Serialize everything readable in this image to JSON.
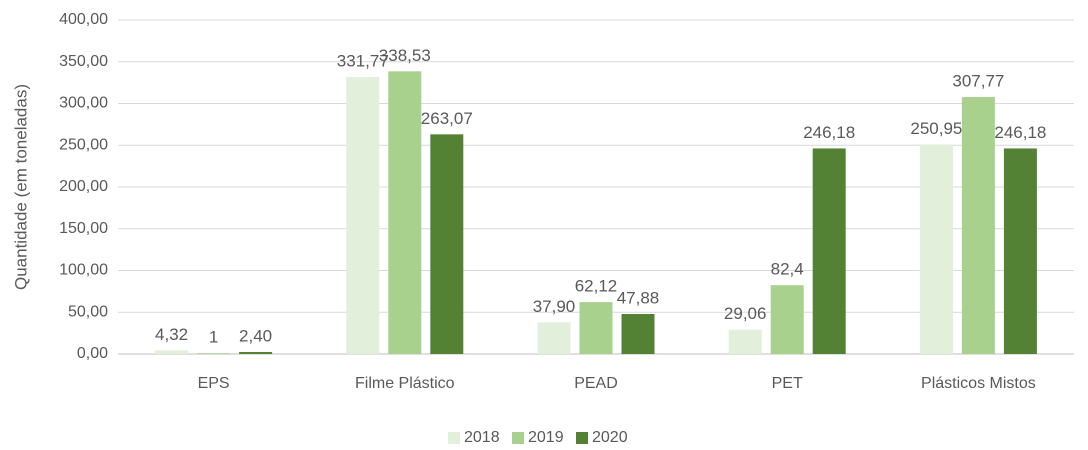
{
  "chart_data": {
    "type": "bar",
    "y_axis_label": "Quantidade (em toneladas)",
    "categories": [
      "EPS",
      "Filme Plástico",
      "PEAD",
      "PET",
      "Plásticos Mistos"
    ],
    "series": [
      {
        "name": "2018",
        "color": "#e2efda",
        "values": [
          4.32,
          331.77,
          37.9,
          29.06,
          250.95
        ],
        "value_labels": [
          "4,32",
          "331,77",
          "37,90",
          "29,06",
          "250,95"
        ]
      },
      {
        "name": "2019",
        "color": "#a9d18e",
        "values": [
          1,
          338.53,
          62.12,
          82.4,
          307.77
        ],
        "value_labels": [
          "1",
          "338,53",
          "62,12",
          "82,4",
          "307,77"
        ]
      },
      {
        "name": "2020",
        "color": "#548235",
        "values": [
          2.4,
          263.07,
          47.88,
          246.18,
          246.18
        ],
        "value_labels": [
          "2,40",
          "263,07",
          "47,88",
          "246,18",
          "246,18"
        ]
      }
    ],
    "ylim": [
      0,
      400
    ],
    "yticks": [
      {
        "value": 0,
        "label": "0,00"
      },
      {
        "value": 50,
        "label": "50,00"
      },
      {
        "value": 100,
        "label": "100,00"
      },
      {
        "value": 150,
        "label": "150,00"
      },
      {
        "value": 200,
        "label": "200,00"
      },
      {
        "value": 250,
        "label": "250,00"
      },
      {
        "value": 300,
        "label": "300,00"
      },
      {
        "value": 350,
        "label": "350,00"
      },
      {
        "value": 400,
        "label": "400,00"
      }
    ],
    "grid": true,
    "legend": "bottom"
  }
}
